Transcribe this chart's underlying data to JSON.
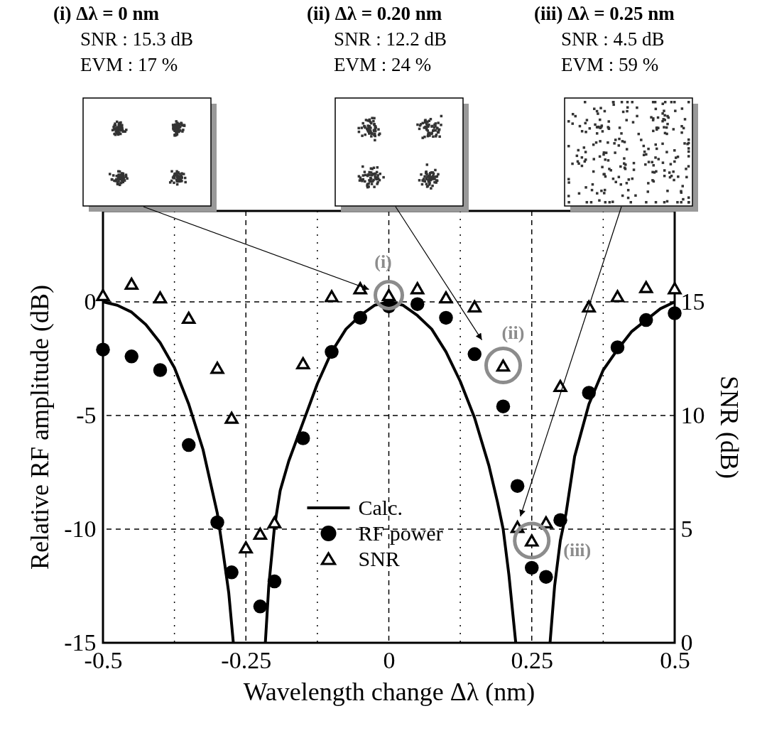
{
  "chart_data": {
    "type": "line",
    "xlabel": "Wavelength change Δλ (nm)",
    "ylabel": "Relative RF amplitude (dB)",
    "y2label": "SNR (dB)",
    "xlim": [
      -0.5,
      0.5
    ],
    "xticks": [
      -0.5,
      {
        "value": -0.375,
        "label": null
      },
      -0.25,
      {
        "value": -0.125,
        "label": null
      },
      0,
      {
        "value": 0.125,
        "label": null
      },
      0.25,
      {
        "value": 0.375,
        "label": null
      },
      0.5
    ],
    "ylim": [
      -15,
      4
    ],
    "yticks": [
      -15,
      -10,
      -5,
      0
    ],
    "y2lim": [
      0,
      19
    ],
    "y2ticks": [
      0,
      5,
      10,
      15
    ],
    "grid": true,
    "legend": "bottom",
    "series": [
      {
        "name": "Calc.",
        "color": "#000000",
        "line_style": "solid",
        "x": [
          -0.5,
          -0.475,
          -0.45,
          -0.425,
          -0.4,
          -0.375,
          -0.35,
          -0.325,
          -0.3,
          -0.29,
          -0.28,
          -0.272,
          -0.25,
          -0.216,
          -0.21,
          -0.2,
          -0.19,
          -0.175,
          -0.15,
          -0.125,
          -0.1,
          -0.075,
          -0.05,
          -0.025,
          0,
          0.025,
          0.05,
          0.075,
          0.1,
          0.125,
          0.15,
          0.175,
          0.19,
          0.2,
          0.21,
          0.222,
          0.25,
          0.282,
          0.29,
          0.3,
          0.31,
          0.325,
          0.35,
          0.375,
          0.4,
          0.425,
          0.45,
          0.475,
          0.5
        ],
        "values": [
          0,
          -0.15,
          -0.45,
          -1.0,
          -1.8,
          -2.9,
          -4.5,
          -6.5,
          -9.3,
          -11,
          -12.8,
          -15,
          null,
          -15,
          -12.5,
          -9.9,
          -8.3,
          -7,
          -5.3,
          -3.6,
          -2.2,
          -1.2,
          -0.6,
          -0.15,
          0,
          -0.15,
          -0.6,
          -1.2,
          -2.2,
          -3.5,
          -5.1,
          -7.2,
          -8.8,
          -10,
          -12,
          -15,
          null,
          -15,
          -12.5,
          -10.5,
          -9.3,
          -6.8,
          -4.5,
          -3.0,
          -2.1,
          -1.3,
          -0.8,
          -0.3,
          0
        ]
      },
      {
        "name": "RF power",
        "type": "scatter",
        "color": "#000000",
        "marker": "circle",
        "x": [
          -0.5,
          -0.45,
          -0.4,
          -0.35,
          -0.3,
          -0.275,
          -0.225,
          -0.2,
          -0.15,
          -0.1,
          -0.05,
          0,
          0.05,
          0.1,
          0.15,
          0.2,
          0.225,
          0.25,
          0.275,
          0.3,
          0.35,
          0.4,
          0.45,
          0.5
        ],
        "values": [
          -2.1,
          -2.4,
          -3.0,
          -6.3,
          -9.7,
          -11.9,
          -13.4,
          -12.3,
          -6.0,
          -2.2,
          -0.7,
          -0.2,
          -0.1,
          -0.7,
          -2.3,
          -4.6,
          -8.1,
          -11.7,
          -12.1,
          -9.6,
          -4.0,
          -2.0,
          -0.8,
          -0.5
        ]
      },
      {
        "name": "SNR",
        "type": "scatter",
        "axis": "y2",
        "color": "#000000",
        "marker": "triangle",
        "x": [
          -0.5,
          -0.45,
          -0.4,
          -0.35,
          -0.3,
          -0.275,
          -0.25,
          -0.225,
          -0.2,
          -0.15,
          -0.1,
          -0.05,
          0,
          0.05,
          0.1,
          0.15,
          0.2,
          0.225,
          0.25,
          0.275,
          0.3,
          0.35,
          0.4,
          0.45,
          0.5
        ],
        "values": [
          15.3,
          15.8,
          15.2,
          14.3,
          12.1,
          9.9,
          4.2,
          4.8,
          5.3,
          12.3,
          15.25,
          15.6,
          15.3,
          15.6,
          15.2,
          14.8,
          12.2,
          5.1,
          4.5,
          5.3,
          11.3,
          14.8,
          15.25,
          15.65,
          15.6
        ]
      }
    ],
    "annotations": [
      "(i) Δλ = 0 nm",
      "SNR : 15.3 dB",
      "EVM : 17 %",
      "(ii) Δλ = 0.20 nm",
      "SNR : 12.2 dB",
      "EVM : 24 %",
      "(iii) Δλ = 0.25 nm",
      "SNR : 4.5 dB",
      "EVM : 59 %",
      {
        "text": "(i)",
        "x": 0,
        "y": 0.3
      },
      {
        "text": "(ii)",
        "x": 0.2,
        "y": -2.8
      },
      {
        "text": "(iii)",
        "x": 0.25,
        "y": -10.5
      }
    ]
  }
}
